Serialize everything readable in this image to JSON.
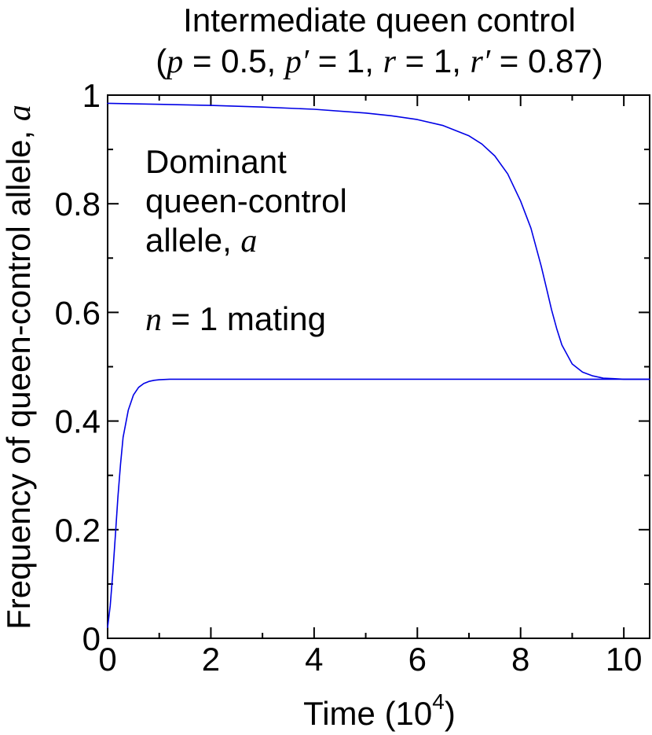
{
  "chart_data": {
    "type": "line",
    "title": {
      "line1": "Intermediate queen control",
      "line2": {
        "open": "(",
        "p": "p",
        "eq_p": " = 0.5, ",
        "pprime": "p′",
        "eq_pprime": " = 1, ",
        "r": "r",
        "eq_r": " = 1, ",
        "rprime": "r′",
        "eq_rprime": " = 0.87)"
      }
    },
    "xlabel": {
      "prefix": "Time (10",
      "exponent": "4",
      "suffix": ")"
    },
    "ylabel": {
      "text": "Frequency of queen-control allele, ",
      "var": "a"
    },
    "annotation": {
      "line1": "Dominant",
      "line2": "queen-control",
      "line3_text": "allele, ",
      "line3_var": "a",
      "mating_var": "n",
      "mating_text": " = 1 mating"
    },
    "xlim": [
      0,
      10.5
    ],
    "ylim": [
      0,
      1
    ],
    "x_ticks": [
      0,
      2,
      4,
      6,
      8,
      10
    ],
    "x_tick_labels": [
      "0",
      "2",
      "4",
      "6",
      "8",
      "10"
    ],
    "y_ticks": [
      0,
      0.2,
      0.4,
      0.6,
      0.8,
      1
    ],
    "y_tick_labels": [
      "0",
      "0.2",
      "0.4",
      "0.6",
      "0.8",
      "1"
    ],
    "grid": false,
    "line_color": "#0000e6",
    "series": [
      {
        "x": [
          0,
          0.05,
          0.1,
          0.15,
          0.2,
          0.25,
          0.3,
          0.4,
          0.5,
          0.6,
          0.7,
          0.8,
          0.9,
          1.0,
          1.2,
          1.5,
          2.0,
          3.0,
          5.0,
          8.0,
          10.5
        ],
        "y": [
          0.02,
          0.06,
          0.12,
          0.19,
          0.26,
          0.32,
          0.37,
          0.42,
          0.448,
          0.462,
          0.469,
          0.473,
          0.475,
          0.476,
          0.477,
          0.477,
          0.477,
          0.477,
          0.477,
          0.477,
          0.477
        ]
      },
      {
        "x": [
          0,
          1,
          2,
          3,
          4,
          5,
          5.5,
          6,
          6.5,
          7,
          7.25,
          7.5,
          7.75,
          8,
          8.2,
          8.4,
          8.5,
          8.6,
          8.7,
          8.8,
          9.0,
          9.2,
          9.4,
          9.6,
          9.8,
          10.0,
          10.5
        ],
        "y": [
          0.985,
          0.983,
          0.981,
          0.978,
          0.974,
          0.967,
          0.962,
          0.955,
          0.944,
          0.925,
          0.91,
          0.888,
          0.855,
          0.805,
          0.755,
          0.685,
          0.645,
          0.605,
          0.57,
          0.54,
          0.505,
          0.49,
          0.483,
          0.479,
          0.478,
          0.477,
          0.477
        ]
      }
    ]
  }
}
